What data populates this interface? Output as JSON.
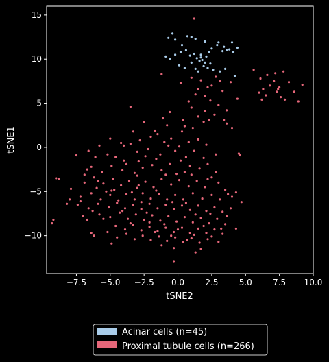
{
  "chart_data": {
    "type": "scatter",
    "title": "",
    "xlabel": "tSNE2",
    "ylabel": "tSNE1",
    "xlim": [
      -9.7,
      10.0
    ],
    "ylim": [
      -14.3,
      16.0
    ],
    "xticks": [
      -7.5,
      -5.0,
      -2.5,
      0.0,
      2.5,
      5.0,
      7.5,
      10.0
    ],
    "xtick_labels": [
      "−7.5",
      "−5.0",
      "−2.5",
      "0.0",
      "2.5",
      "5.0",
      "7.5",
      "10.0"
    ],
    "yticks": [
      -10,
      -5,
      0,
      5,
      10,
      15
    ],
    "ytick_labels": [
      "−10",
      "−5",
      "0",
      "5",
      "10",
      "15"
    ],
    "grid": false,
    "legend_position": "bottom-center-outside",
    "series": [
      {
        "name": "Acinar cells (n=45)",
        "color": "#a9cce9",
        "points": [
          [
            -0.7,
            12.4
          ],
          [
            -0.4,
            12.9
          ],
          [
            -0.2,
            12.2
          ],
          [
            0.3,
            11.6
          ],
          [
            0.7,
            12.6
          ],
          [
            1.0,
            12.5
          ],
          [
            1.3,
            12.3
          ],
          [
            2.0,
            12.0
          ],
          [
            3.0,
            11.9
          ],
          [
            3.4,
            11.4
          ],
          [
            4.0,
            11.9
          ],
          [
            4.4,
            11.3
          ],
          [
            -0.9,
            10.3
          ],
          [
            -0.6,
            10.0
          ],
          [
            -0.2,
            10.5
          ],
          [
            0.2,
            10.8
          ],
          [
            0.6,
            11.0
          ],
          [
            0.9,
            10.4
          ],
          [
            1.2,
            10.6
          ],
          [
            1.4,
            10.1
          ],
          [
            1.6,
            9.8
          ],
          [
            1.7,
            10.2
          ],
          [
            1.8,
            9.9
          ],
          [
            2.0,
            9.6
          ],
          [
            2.1,
            10.3
          ],
          [
            2.3,
            10.8
          ],
          [
            2.5,
            11.2
          ],
          [
            2.9,
            11.6
          ],
          [
            3.3,
            10.9
          ],
          [
            3.6,
            11.0
          ],
          [
            3.8,
            11.1
          ],
          [
            4.1,
            10.8
          ],
          [
            0.1,
            9.3
          ],
          [
            0.5,
            9.0
          ],
          [
            1.0,
            9.6
          ],
          [
            1.3,
            8.9
          ],
          [
            1.5,
            8.6
          ],
          [
            1.9,
            9.2
          ],
          [
            2.2,
            9.0
          ],
          [
            2.6,
            8.8
          ],
          [
            3.1,
            8.6
          ],
          [
            3.5,
            8.9
          ],
          [
            4.2,
            8.1
          ],
          [
            1.7,
            10.5
          ],
          [
            2.4,
            9.5
          ]
        ]
      },
      {
        "name": "Proximal tubule cells (n=266)",
        "color": "#e6677a",
        "points": [
          [
            1.2,
            14.6
          ],
          [
            -3.5,
            4.6
          ],
          [
            -2.5,
            2.9
          ],
          [
            -1.2,
            8.3
          ],
          [
            0.2,
            7.3
          ],
          [
            1.0,
            7.9
          ],
          [
            1.5,
            6.6
          ],
          [
            2.0,
            5.8
          ],
          [
            1.7,
            7.6
          ],
          [
            2.4,
            5.3
          ],
          [
            3.3,
            6.4
          ],
          [
            3.9,
            7.4
          ],
          [
            4.4,
            5.5
          ],
          [
            3.6,
            4.2
          ],
          [
            2.7,
            3.7
          ],
          [
            4.0,
            2.2
          ],
          [
            1.9,
            2.9
          ],
          [
            2.5,
            7.0
          ],
          [
            3.0,
            4.8
          ],
          [
            3.4,
            3.1
          ],
          [
            1.3,
            6.0
          ],
          [
            0.8,
            5.2
          ],
          [
            2.8,
            8.0
          ],
          [
            1.0,
            4.5
          ],
          [
            2.0,
            4.1
          ],
          [
            3.6,
            2.7
          ],
          [
            0.5,
            2.4
          ],
          [
            1.5,
            3.5
          ],
          [
            2.2,
            6.8
          ],
          [
            3.1,
            7.5
          ],
          [
            5.6,
            8.8
          ],
          [
            6.1,
            7.8
          ],
          [
            6.3,
            6.6
          ],
          [
            6.5,
            5.9
          ],
          [
            6.8,
            7.0
          ],
          [
            7.1,
            7.5
          ],
          [
            7.3,
            6.3
          ],
          [
            7.5,
            6.8
          ],
          [
            7.6,
            5.7
          ],
          [
            7.9,
            5.4
          ],
          [
            8.2,
            7.4
          ],
          [
            8.6,
            6.3
          ],
          [
            8.9,
            5.2
          ],
          [
            9.2,
            7.1
          ],
          [
            6.0,
            6.2
          ],
          [
            7.2,
            8.4
          ],
          [
            6.6,
            8.2
          ],
          [
            7.8,
            8.6
          ],
          [
            7.4,
            6.6
          ],
          [
            6.2,
            5.4
          ],
          [
            -5.0,
            1.0
          ],
          [
            -4.2,
            0.5
          ],
          [
            -3.5,
            0.4
          ],
          [
            -2.8,
            0.8
          ],
          [
            -2.0,
            1.2
          ],
          [
            -1.5,
            1.5
          ],
          [
            -1.0,
            0.6
          ],
          [
            -0.5,
            1.0
          ],
          [
            -3.0,
            -0.5
          ],
          [
            -4.0,
            -1.5
          ],
          [
            -5.2,
            -0.8
          ],
          [
            -6.1,
            -1.1
          ],
          [
            -2.2,
            -0.2
          ],
          [
            -1.3,
            -0.8
          ],
          [
            -0.2,
            -0.4
          ],
          [
            -7.5,
            -0.9
          ],
          [
            -6.4,
            -2.2
          ],
          [
            -5.6,
            -2.8
          ],
          [
            -4.9,
            -2.1
          ],
          [
            -4.1,
            -2.6
          ],
          [
            -3.2,
            -2.9
          ],
          [
            -2.6,
            -2.3
          ],
          [
            -1.9,
            -2.0
          ],
          [
            -1.2,
            -2.6
          ],
          [
            -0.6,
            -1.9
          ],
          [
            0.2,
            -1.5
          ],
          [
            0.9,
            -2.1
          ],
          [
            1.6,
            -2.4
          ],
          [
            2.2,
            -1.9
          ],
          [
            2.8,
            -2.8
          ],
          [
            -6.9,
            -4.0
          ],
          [
            -6.2,
            -3.4
          ],
          [
            -5.5,
            -4.1
          ],
          [
            -4.8,
            -3.6
          ],
          [
            -4.2,
            -4.3
          ],
          [
            -3.6,
            -3.8
          ],
          [
            -3.0,
            -4.6
          ],
          [
            -2.4,
            -3.9
          ],
          [
            -1.8,
            -4.5
          ],
          [
            -1.2,
            -3.6
          ],
          [
            -0.5,
            -4.2
          ],
          [
            0.1,
            -3.7
          ],
          [
            0.8,
            -4.4
          ],
          [
            1.4,
            -3.8
          ],
          [
            2.0,
            -4.5
          ],
          [
            -7.2,
            -5.6
          ],
          [
            -6.4,
            -5.2
          ],
          [
            -5.7,
            -5.9
          ],
          [
            -5.0,
            -5.4
          ],
          [
            -4.4,
            -6.0
          ],
          [
            -3.8,
            -5.3
          ],
          [
            -3.2,
            -5.9
          ],
          [
            -2.6,
            -5.2
          ],
          [
            -2.0,
            -5.8
          ],
          [
            -1.4,
            -5.3
          ],
          [
            -0.8,
            -5.9
          ],
          [
            -0.2,
            -5.4
          ],
          [
            0.4,
            -5.9
          ],
          [
            1.1,
            -5.2
          ],
          [
            1.8,
            -5.8
          ],
          [
            2.5,
            -5.4
          ],
          [
            3.1,
            -5.9
          ],
          [
            3.7,
            -5.3
          ],
          [
            4.3,
            -5.1
          ],
          [
            -8.0,
            -5.9
          ],
          [
            -7.4,
            -6.5
          ],
          [
            -6.6,
            -6.9
          ],
          [
            -5.9,
            -6.4
          ],
          [
            -5.1,
            -6.8
          ],
          [
            -4.5,
            -6.3
          ],
          [
            -3.9,
            -6.9
          ],
          [
            -3.3,
            -6.5
          ],
          [
            -2.7,
            -7.0
          ],
          [
            -2.1,
            -6.4
          ],
          [
            -1.5,
            -6.9
          ],
          [
            -0.9,
            -6.5
          ],
          [
            -0.3,
            -7.0
          ],
          [
            0.3,
            -6.6
          ],
          [
            0.9,
            -7.1
          ],
          [
            1.5,
            -6.6
          ],
          [
            2.1,
            -7.2
          ],
          [
            2.7,
            -6.8
          ],
          [
            3.3,
            -7.3
          ],
          [
            3.9,
            -6.9
          ],
          [
            4.7,
            -6.2
          ],
          [
            -5.8,
            -7.6
          ],
          [
            -5.0,
            -7.9
          ],
          [
            -4.3,
            -7.4
          ],
          [
            -3.7,
            -8.1
          ],
          [
            -3.1,
            -7.6
          ],
          [
            -2.5,
            -8.2
          ],
          [
            -1.9,
            -7.7
          ],
          [
            -1.3,
            -8.3
          ],
          [
            -0.7,
            -7.8
          ],
          [
            -0.1,
            -8.4
          ],
          [
            0.5,
            -7.9
          ],
          [
            1.1,
            -8.5
          ],
          [
            1.7,
            -8.0
          ],
          [
            2.3,
            -8.6
          ],
          [
            2.9,
            -8.1
          ],
          [
            3.5,
            -8.7
          ],
          [
            -6.7,
            -8.2
          ],
          [
            -4.6,
            -8.9
          ],
          [
            -3.9,
            -9.3
          ],
          [
            -3.3,
            -8.8
          ],
          [
            -2.7,
            -9.4
          ],
          [
            -2.1,
            -9.0
          ],
          [
            -1.5,
            -9.5
          ],
          [
            -0.9,
            -9.1
          ],
          [
            -0.3,
            -9.6
          ],
          [
            0.3,
            -9.1
          ],
          [
            0.9,
            -9.7
          ],
          [
            1.5,
            -9.2
          ],
          [
            2.1,
            -9.7
          ],
          [
            2.7,
            -9.3
          ],
          [
            3.3,
            -9.8
          ],
          [
            4.3,
            -9.2
          ],
          [
            -5.2,
            -9.6
          ],
          [
            -4.5,
            -10.2
          ],
          [
            -3.8,
            -9.8
          ],
          [
            -3.2,
            -10.4
          ],
          [
            -2.6,
            -10.0
          ],
          [
            -2.0,
            -10.5
          ],
          [
            -1.4,
            -10.1
          ],
          [
            -0.8,
            -10.6
          ],
          [
            -0.2,
            -10.2
          ],
          [
            0.4,
            -10.7
          ],
          [
            1.0,
            -10.3
          ],
          [
            1.6,
            -10.8
          ],
          [
            2.2,
            -10.4
          ],
          [
            -6.4,
            -9.7
          ],
          [
            -6.2,
            -10.0
          ],
          [
            -4.9,
            -10.9
          ],
          [
            -1.2,
            -11.1
          ],
          [
            -0.3,
            -11.4
          ],
          [
            1.7,
            -11.5
          ],
          [
            -9.0,
            -3.5
          ],
          [
            -8.8,
            -3.6
          ],
          [
            -9.2,
            -8.2
          ],
          [
            -9.3,
            -8.6
          ],
          [
            -8.2,
            -6.4
          ],
          [
            -6.9,
            -3.1
          ],
          [
            -6.7,
            -2.5
          ],
          [
            -0.3,
            -12.9
          ],
          [
            1.3,
            -11.9
          ],
          [
            4.5,
            -0.7
          ],
          [
            4.6,
            -0.9
          ],
          [
            2.3,
            3.1
          ],
          [
            -0.6,
            4.0
          ],
          [
            0.4,
            3.1
          ],
          [
            -1.7,
            1.9
          ],
          [
            -0.8,
            2.5
          ],
          [
            0.1,
            0.1
          ],
          [
            0.8,
            0.6
          ],
          [
            1.2,
            -0.4
          ],
          [
            1.9,
            -1.2
          ],
          [
            2.5,
            -3.4
          ],
          [
            3.0,
            -4.0
          ],
          [
            3.5,
            -4.8
          ],
          [
            -4.6,
            -1.1
          ],
          [
            -3.8,
            -1.9
          ],
          [
            -2.9,
            -1.6
          ],
          [
            -1.6,
            -1.3
          ],
          [
            -0.9,
            -3.1
          ],
          [
            0.5,
            -2.8
          ],
          [
            -7.9,
            -4.7
          ],
          [
            -6.0,
            -4.6
          ],
          [
            -5.3,
            -5.0
          ],
          [
            -4.7,
            -4.8
          ],
          [
            -2.9,
            -4.3
          ],
          [
            -1.6,
            -4.9
          ],
          [
            -0.4,
            -6.2
          ],
          [
            0.6,
            -6.3
          ],
          [
            1.3,
            -7.6
          ],
          [
            2.4,
            -7.5
          ],
          [
            3.6,
            -7.8
          ],
          [
            -4.1,
            -7.2
          ],
          [
            -2.3,
            -7.4
          ],
          [
            -1.0,
            -8.7
          ],
          [
            0.0,
            -9.3
          ],
          [
            1.2,
            -9.9
          ],
          [
            2.5,
            -10.1
          ],
          [
            3.2,
            -9.2
          ],
          [
            -3.5,
            -8.6
          ],
          [
            -5.5,
            -8.1
          ],
          [
            -6.3,
            -7.2
          ],
          [
            -7.0,
            -7.8
          ],
          [
            -3.0,
            -3.2
          ],
          [
            -0.1,
            -3.0
          ],
          [
            1.0,
            -3.1
          ],
          [
            2.2,
            -3.6
          ],
          [
            -1.1,
            3.3
          ],
          [
            0.3,
            1.8
          ],
          [
            1.1,
            2.2
          ],
          [
            2.1,
            0.3
          ],
          [
            -4.0,
            0.2
          ],
          [
            -3.3,
            1.8
          ],
          [
            -2.4,
            -1.0
          ],
          [
            -0.7,
            0.2
          ],
          [
            0.6,
            -1.1
          ],
          [
            1.5,
            0.9
          ],
          [
            2.8,
            -0.8
          ],
          [
            -5.8,
            0.2
          ],
          [
            -6.6,
            -0.4
          ],
          [
            -2.7,
            -6.2
          ],
          [
            -1.7,
            -9.6
          ],
          [
            -0.5,
            -10.0
          ],
          [
            0.7,
            -10.5
          ],
          [
            1.9,
            -8.9
          ],
          [
            3.0,
            -10.7
          ],
          [
            -2.1,
            -8.5
          ],
          [
            4.0,
            -5.6
          ],
          [
            -4.9,
            -4.9
          ],
          [
            -3.4,
            -5.1
          ],
          [
            -5.9,
            -3.8
          ],
          [
            -7.2,
            -6.1
          ]
        ]
      }
    ]
  }
}
